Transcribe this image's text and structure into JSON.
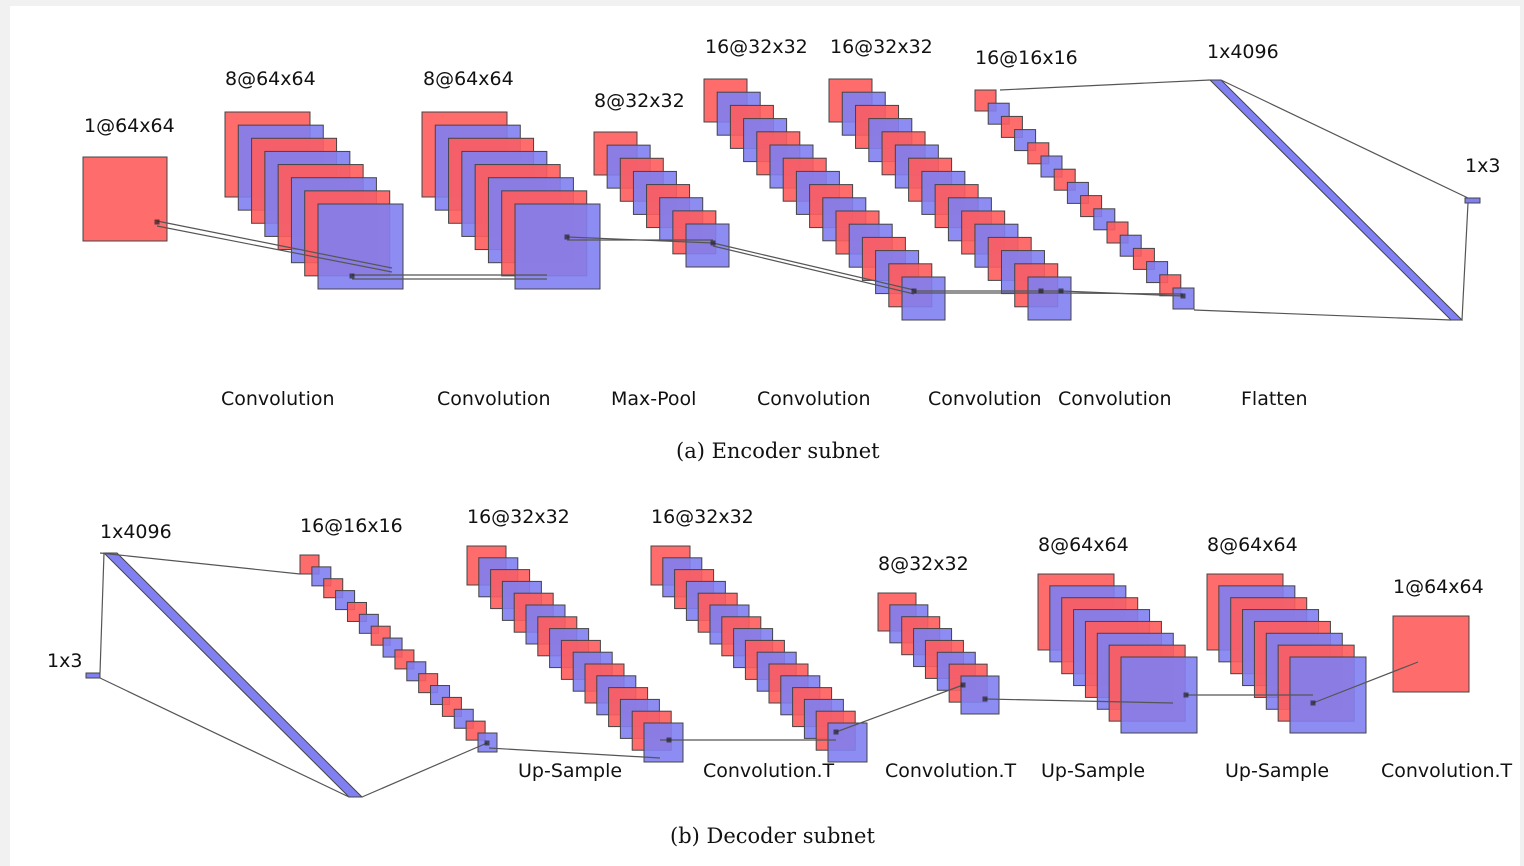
{
  "colors": {
    "red": "#ff5c5c",
    "blue": "#8080f2",
    "outline": "#444444",
    "line": "#555555"
  },
  "encoder": {
    "caption": "(a) Encoder subnet",
    "dims": [
      "1@64x64",
      "8@64x64",
      "8@64x64",
      "8@32x32",
      "16@32x32",
      "16@32x32",
      "16@16x16",
      "1x4096",
      "1x3"
    ],
    "ops": [
      "Convolution",
      "Convolution",
      "Max-Pool",
      "Convolution",
      "Convolution",
      "Convolution",
      "Flatten"
    ]
  },
  "decoder": {
    "caption": "(b) Decoder subnet",
    "dims": [
      "1x4096",
      "1x3",
      "16@16x16",
      "16@32x32",
      "16@32x32",
      "8@32x32",
      "8@64x64",
      "8@64x64",
      "1@64x64"
    ],
    "ops": [
      "Up-Sample",
      "Convolution.T",
      "Convolution.T",
      "Up-Sample",
      "Up-Sample",
      "Convolution.T"
    ]
  }
}
